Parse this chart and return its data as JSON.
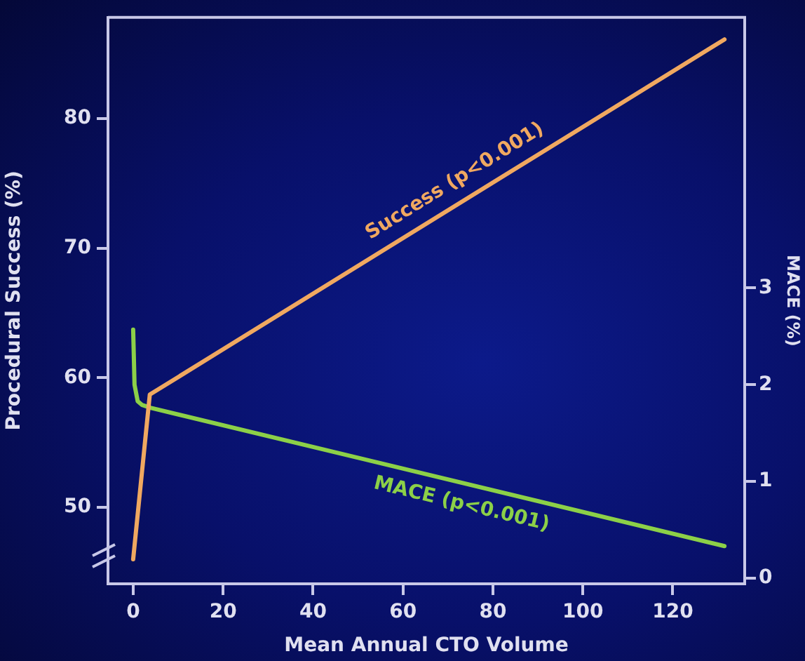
{
  "chart_data": {
    "type": "line",
    "xlabel": "Mean Annual CTO Volume",
    "ylabel": "Procedural Success (%)",
    "y2label": "MACE (%)",
    "xlim": [
      -5.6,
      136
    ],
    "xticks": [
      0,
      20,
      40,
      60,
      80,
      100,
      120
    ],
    "ylim": [
      44.1,
      87.8
    ],
    "yticks": [
      50,
      60,
      70,
      80
    ],
    "y2lim": [
      -0.06,
      5.8
    ],
    "y2ticks": [
      0,
      1,
      2,
      3
    ],
    "grid": false,
    "legend": false,
    "marker": "none",
    "line_style": "solid",
    "series": [
      {
        "name": "Success (p<0.001)",
        "color": "#f0a860",
        "x": [
          0,
          3.7,
          131.5
        ],
        "values": [
          46.0,
          58.7,
          86.1
        ]
      },
      {
        "name": "MACE (p<0.001)",
        "color": "#8cd048",
        "axis": "y2",
        "x": [
          0,
          0.3,
          1,
          2,
          4,
          131.5
        ],
        "values": [
          2.57,
          2.0,
          1.83,
          1.79,
          1.76,
          0.33
        ]
      }
    ]
  }
}
